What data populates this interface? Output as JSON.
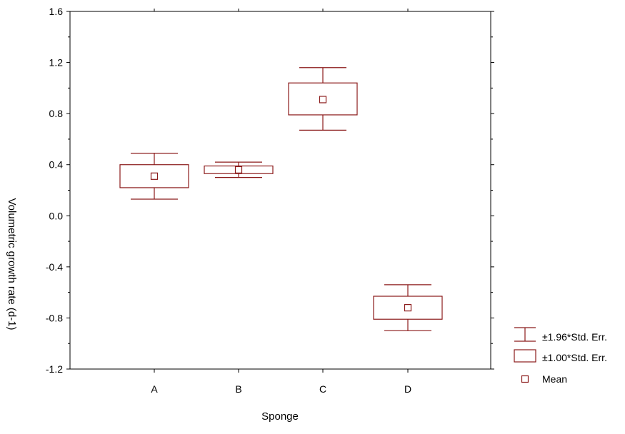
{
  "chart_data": {
    "type": "box",
    "xlabel": "Sponge",
    "ylabel": "Volumetric growth rate (d-1)",
    "ylim": [
      -1.2,
      1.6
    ],
    "yticks": [
      "1.6",
      "1.2",
      "0.8",
      "0.4",
      "0.0",
      "-0.4",
      "-0.8",
      "-1.2"
    ],
    "ytick_values": [
      1.6,
      1.2,
      0.8,
      0.4,
      0.0,
      -0.4,
      -0.8,
      -1.2
    ],
    "categories": [
      "A",
      "B",
      "C",
      "D"
    ],
    "series": [
      {
        "category": "A",
        "mean": 0.31,
        "se_low": 0.22,
        "se_high": 0.4,
        "ci_low": 0.13,
        "ci_high": 0.49
      },
      {
        "category": "B",
        "mean": 0.36,
        "se_low": 0.33,
        "se_high": 0.39,
        "ci_low": 0.3,
        "ci_high": 0.42
      },
      {
        "category": "C",
        "mean": 0.91,
        "se_low": 0.79,
        "se_high": 1.04,
        "ci_low": 0.67,
        "ci_high": 1.16
      },
      {
        "category": "D",
        "mean": -0.72,
        "se_low": -0.81,
        "se_high": -0.63,
        "ci_low": -0.9,
        "ci_high": -0.54
      }
    ],
    "legend": {
      "placement": "right-bottom",
      "items": [
        "±1.96*Std. Err.",
        "±1.00*Std. Err.",
        "Mean"
      ]
    },
    "color": "#8b1a1a",
    "grid": false
  }
}
